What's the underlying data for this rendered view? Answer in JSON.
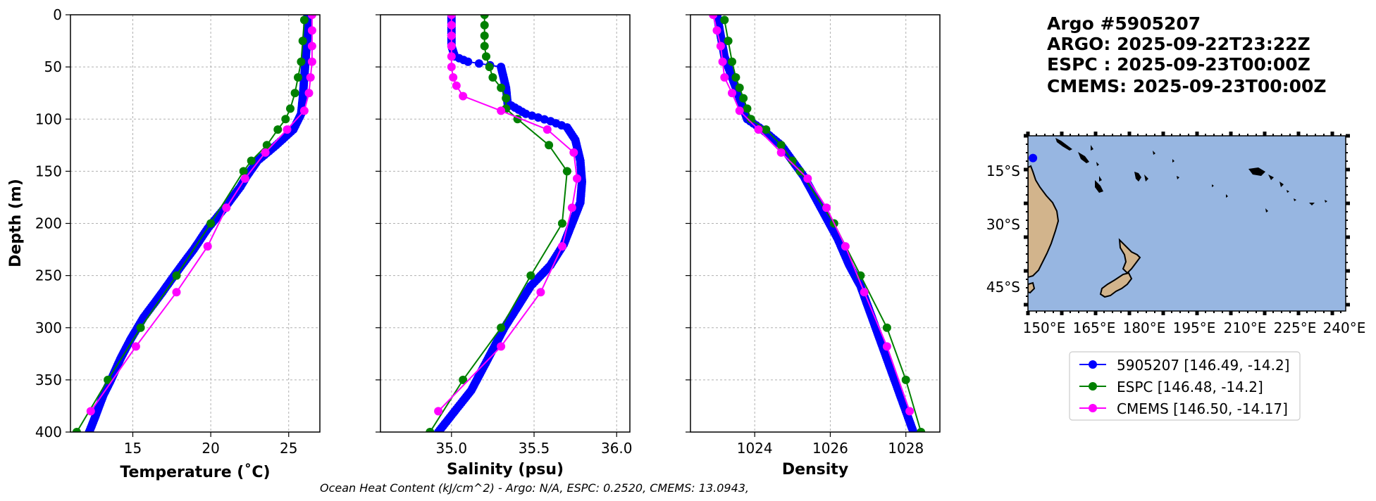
{
  "chart_data": [
    {
      "type": "line",
      "xlabel": "Temperature (˚C)",
      "ylabel": "Depth (m)",
      "xlim": [
        11,
        27
      ],
      "ylim": [
        400,
        0
      ],
      "xticks": [
        15,
        20,
        25
      ],
      "yticks": [
        0,
        50,
        100,
        150,
        200,
        250,
        300,
        350,
        400
      ],
      "grid": true,
      "series": [
        {
          "name": "5905207 [146.49, -14.2]",
          "color": "#0000ff",
          "dense": true,
          "points": [
            [
              26.2,
              0
            ],
            [
              26.2,
              20
            ],
            [
              26.1,
              40
            ],
            [
              26.0,
              60
            ],
            [
              25.9,
              80
            ],
            [
              25.8,
              95
            ],
            [
              25.3,
              110
            ],
            [
              24.2,
              125
            ],
            [
              23.0,
              140
            ],
            [
              22.3,
              155
            ],
            [
              21.9,
              165
            ],
            [
              20.9,
              185
            ],
            [
              19.8,
              205
            ],
            [
              18.9,
              225
            ],
            [
              17.9,
              245
            ],
            [
              16.8,
              268
            ],
            [
              15.7,
              290
            ],
            [
              14.9,
              310
            ],
            [
              14.2,
              330
            ],
            [
              13.6,
              350
            ],
            [
              13.1,
              365
            ],
            [
              12.6,
              385
            ],
            [
              12.2,
              400
            ]
          ]
        },
        {
          "name": "ESPC [146.48, -14.2]",
          "color": "#008000",
          "dense": false,
          "points": [
            [
              26.0,
              5
            ],
            [
              25.9,
              25
            ],
            [
              25.8,
              45
            ],
            [
              25.6,
              60
            ],
            [
              25.4,
              75
            ],
            [
              25.1,
              90
            ],
            [
              24.8,
              100
            ],
            [
              24.3,
              110
            ],
            [
              23.6,
              125
            ],
            [
              22.6,
              140
            ],
            [
              22.1,
              150
            ],
            [
              20.0,
              200
            ],
            [
              17.8,
              250
            ],
            [
              15.5,
              300
            ],
            [
              13.4,
              350
            ],
            [
              11.4,
              400
            ]
          ]
        },
        {
          "name": "CMEMS [146.50, -14.17]",
          "color": "#ff00ff",
          "dense": false,
          "points": [
            [
              26.5,
              0
            ],
            [
              26.5,
              15
            ],
            [
              26.5,
              30
            ],
            [
              26.5,
              45
            ],
            [
              26.4,
              60
            ],
            [
              26.3,
              75
            ],
            [
              26.0,
              92
            ],
            [
              24.9,
              110
            ],
            [
              23.5,
              132
            ],
            [
              22.2,
              157
            ],
            [
              21.0,
              185
            ],
            [
              19.8,
              222
            ],
            [
              17.8,
              266
            ],
            [
              15.2,
              318
            ],
            [
              12.3,
              380
            ]
          ]
        }
      ]
    },
    {
      "type": "line",
      "xlabel": "Salinity (psu)",
      "ylabel": "",
      "xlim": [
        34.57,
        36.08
      ],
      "ylim": [
        400,
        0
      ],
      "xticks": [
        "35.0",
        "35.5",
        "36.0"
      ],
      "yticks": [
        0,
        50,
        100,
        150,
        200,
        250,
        300,
        350,
        400
      ],
      "grid": true,
      "series": [
        {
          "name": "5905207",
          "color": "#0000ff",
          "dense": true,
          "points": [
            [
              35.0,
              0
            ],
            [
              35.0,
              30
            ],
            [
              35.02,
              40
            ],
            [
              35.1,
              45
            ],
            [
              35.3,
              50
            ],
            [
              35.33,
              70
            ],
            [
              35.34,
              85
            ],
            [
              35.45,
              95
            ],
            [
              35.6,
              102
            ],
            [
              35.7,
              108
            ],
            [
              35.75,
              120
            ],
            [
              35.78,
              140
            ],
            [
              35.79,
              160
            ],
            [
              35.78,
              180
            ],
            [
              35.73,
              200
            ],
            [
              35.68,
              220
            ],
            [
              35.6,
              240
            ],
            [
              35.48,
              260
            ],
            [
              35.4,
              280
            ],
            [
              35.32,
              300
            ],
            [
              35.22,
              330
            ],
            [
              35.12,
              360
            ],
            [
              35.02,
              380
            ],
            [
              34.92,
              400
            ]
          ]
        },
        {
          "name": "ESPC",
          "color": "#008000",
          "dense": false,
          "points": [
            [
              35.2,
              0
            ],
            [
              35.2,
              10
            ],
            [
              35.2,
              20
            ],
            [
              35.2,
              30
            ],
            [
              35.21,
              40
            ],
            [
              35.23,
              50
            ],
            [
              35.25,
              60
            ],
            [
              35.3,
              70
            ],
            [
              35.33,
              80
            ],
            [
              35.33,
              90
            ],
            [
              35.4,
              100
            ],
            [
              35.59,
              125
            ],
            [
              35.7,
              150
            ],
            [
              35.67,
              200
            ],
            [
              35.48,
              250
            ],
            [
              35.3,
              300
            ],
            [
              35.07,
              350
            ],
            [
              34.87,
              400
            ]
          ]
        },
        {
          "name": "CMEMS",
          "color": "#ff00ff",
          "dense": false,
          "points": [
            [
              35.0,
              0
            ],
            [
              35.0,
              10
            ],
            [
              35.0,
              20
            ],
            [
              35.0,
              30
            ],
            [
              35.0,
              40
            ],
            [
              35.0,
              50
            ],
            [
              35.01,
              60
            ],
            [
              35.03,
              68
            ],
            [
              35.07,
              78
            ],
            [
              35.3,
              92
            ],
            [
              35.58,
              110
            ],
            [
              35.74,
              132
            ],
            [
              35.76,
              157
            ],
            [
              35.73,
              185
            ],
            [
              35.67,
              222
            ],
            [
              35.54,
              266
            ],
            [
              35.3,
              318
            ],
            [
              34.92,
              380
            ]
          ]
        }
      ]
    },
    {
      "type": "line",
      "xlabel": "Density",
      "ylabel": "",
      "xlim": [
        1022.3,
        1028.9
      ],
      "ylim": [
        400,
        0
      ],
      "xticks": [
        "1024",
        "1026",
        "1028"
      ],
      "yticks": [
        0,
        50,
        100,
        150,
        200,
        250,
        300,
        350,
        400
      ],
      "grid": true,
      "series": [
        {
          "name": "5905207",
          "color": "#0000ff",
          "dense": true,
          "points": [
            [
              1023.0,
              0
            ],
            [
              1023.1,
              20
            ],
            [
              1023.2,
              40
            ],
            [
              1023.4,
              60
            ],
            [
              1023.6,
              80
            ],
            [
              1023.8,
              100
            ],
            [
              1024.2,
              110
            ],
            [
              1024.7,
              125
            ],
            [
              1025.0,
              140
            ],
            [
              1025.3,
              155
            ],
            [
              1025.6,
              175
            ],
            [
              1025.9,
              195
            ],
            [
              1026.2,
              215
            ],
            [
              1026.5,
              240
            ],
            [
              1026.8,
              260
            ],
            [
              1027.0,
              280
            ],
            [
              1027.3,
              310
            ],
            [
              1027.6,
              340
            ],
            [
              1027.9,
              370
            ],
            [
              1028.2,
              400
            ]
          ]
        },
        {
          "name": "ESPC",
          "color": "#008000",
          "dense": false,
          "points": [
            [
              1023.2,
              5
            ],
            [
              1023.3,
              25
            ],
            [
              1023.4,
              45
            ],
            [
              1023.5,
              60
            ],
            [
              1023.6,
              70
            ],
            [
              1023.7,
              80
            ],
            [
              1023.8,
              90
            ],
            [
              1023.9,
              100
            ],
            [
              1024.3,
              110
            ],
            [
              1024.7,
              125
            ],
            [
              1025.0,
              140
            ],
            [
              1025.2,
              150
            ],
            [
              1026.1,
              200
            ],
            [
              1026.8,
              250
            ],
            [
              1027.5,
              300
            ],
            [
              1028.0,
              350
            ],
            [
              1028.4,
              400
            ]
          ]
        },
        {
          "name": "CMEMS",
          "color": "#ff00ff",
          "dense": false,
          "points": [
            [
              1022.9,
              0
            ],
            [
              1023.0,
              15
            ],
            [
              1023.1,
              30
            ],
            [
              1023.15,
              45
            ],
            [
              1023.2,
              60
            ],
            [
              1023.4,
              75
            ],
            [
              1023.6,
              92
            ],
            [
              1024.1,
              110
            ],
            [
              1024.7,
              132
            ],
            [
              1025.4,
              157
            ],
            [
              1025.9,
              185
            ],
            [
              1026.4,
              222
            ],
            [
              1026.9,
              266
            ],
            [
              1027.5,
              318
            ],
            [
              1028.1,
              380
            ]
          ]
        }
      ]
    }
  ],
  "header": {
    "lines": [
      "Argo #5905207",
      "ARGO: 2025-09-22T23:22Z",
      "ESPC : 2025-09-23T00:00Z",
      "CMEMS: 2025-09-23T00:00Z"
    ]
  },
  "map": {
    "lat_ticks": [
      "15°S",
      "30°S",
      "45°S"
    ],
    "lon_ticks": [
      "150°E",
      "165°E",
      "180°E",
      "195°E",
      "210°E",
      "225°E",
      "240°E"
    ],
    "lon_range": [
      145,
      240
    ],
    "lat_range": [
      -50,
      -9
    ],
    "float_position": {
      "lon": 146.49,
      "lat": -14.2
    },
    "ocean_color": "#97b6e1",
    "land_color": "#d2b48c",
    "marker_color": "#0000ff"
  },
  "legend": {
    "entries": [
      {
        "label": "5905207 [146.49, -14.2]",
        "color": "#0000ff"
      },
      {
        "label": "ESPC [146.48, -14.2]",
        "color": "#008000"
      },
      {
        "label": "CMEMS [146.50, -14.17]",
        "color": "#ff00ff"
      }
    ]
  },
  "footer": {
    "text": "Ocean Heat Content (kJ/cm^2) - Argo: N/A,  ESPC: 0.2520,  CMEMS: 13.0943,"
  }
}
